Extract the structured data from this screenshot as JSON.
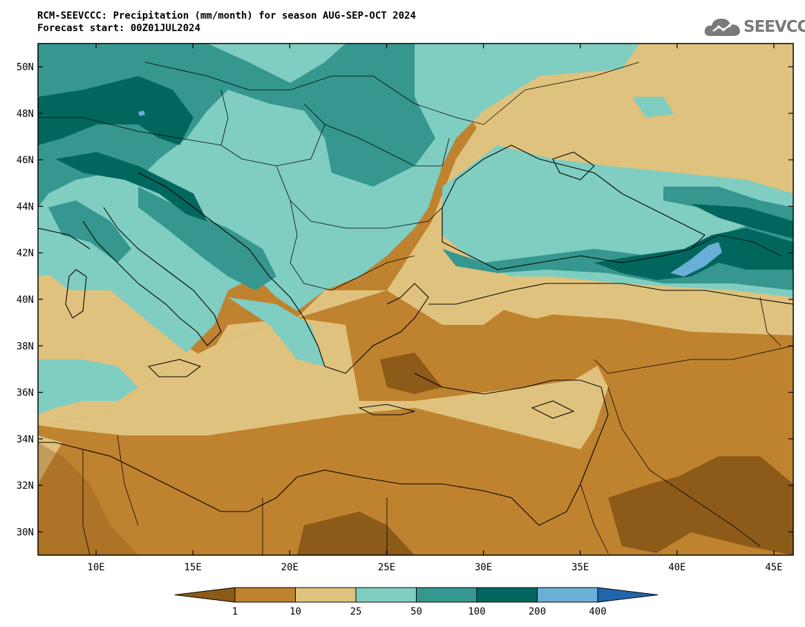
{
  "title": {
    "line1": "RCM-SEEVCCC: Precipitation (mm/month) for season AUG-SEP-OCT 2024",
    "line2": "Forecast start: 00Z01JUL2024"
  },
  "logo": {
    "text": "SEEVCCC",
    "icon": "cloud-icon"
  },
  "map": {
    "lon_range": [
      7,
      46
    ],
    "lat_range": [
      29,
      51
    ],
    "lat_ticks": [
      "50N",
      "48N",
      "46N",
      "44N",
      "42N",
      "40N",
      "38N",
      "36N",
      "34N",
      "32N",
      "30N"
    ],
    "lon_ticks": [
      "10E",
      "15E",
      "20E",
      "25E",
      "30E",
      "35E",
      "40E",
      "45E"
    ]
  },
  "colorbar": {
    "labels": [
      "1",
      "10",
      "25",
      "50",
      "100",
      "200",
      "400"
    ],
    "colors": [
      "#8c5a19",
      "#bf822f",
      "#dfc27d",
      "#80cdc1",
      "#35978f",
      "#01665e",
      "#6baed6",
      "#2166ac"
    ]
  }
}
